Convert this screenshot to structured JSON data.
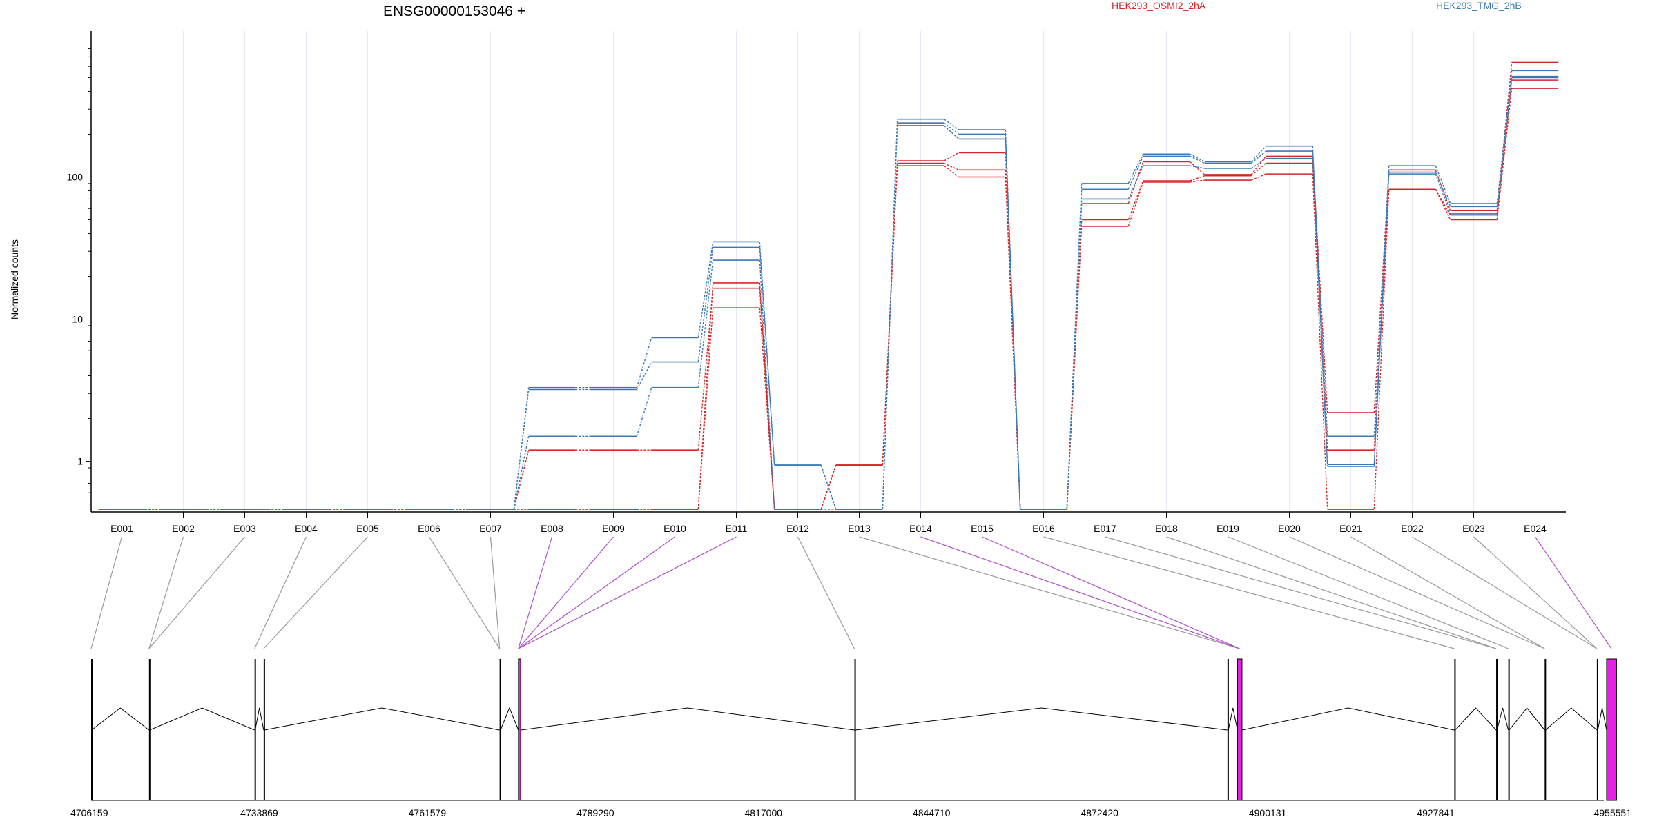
{
  "chart_data": {
    "type": "line",
    "title": "ENSG00000153046 +",
    "ylabel": "Normalized counts",
    "xlabel": "",
    "yscale": "log",
    "ylim": [
      0.45,
      850
    ],
    "yticks": [
      1,
      10,
      100
    ],
    "grid": true,
    "legend_position": "top",
    "categories": [
      "E001",
      "E002",
      "E003",
      "E004",
      "E005",
      "E006",
      "E007",
      "E008",
      "E009",
      "E010",
      "E011",
      "E012",
      "E013",
      "E014",
      "E015",
      "E016",
      "E017",
      "E018",
      "E019",
      "E020",
      "E021",
      "E022",
      "E023",
      "E024"
    ],
    "series": [
      {
        "name": "HEK293_OSMI2_2hA",
        "color": "#d62728",
        "values": [
          0.46,
          0.46,
          0.46,
          0.46,
          0.46,
          0.46,
          0.46,
          0.46,
          0.46,
          0.46,
          12,
          0.46,
          0.94,
          120,
          100,
          0.46,
          45,
          92,
          95,
          105,
          0.46,
          82,
          50,
          420
        ]
      },
      {
        "name": "HEK293_OSMI2_2hA",
        "color": "#d62728",
        "values": [
          0.46,
          0.46,
          0.46,
          0.46,
          0.46,
          0.46,
          0.46,
          1.2,
          1.2,
          1.2,
          16.5,
          0.46,
          0.94,
          125,
          112,
          0.46,
          50,
          94,
          102,
          125,
          1.2,
          82,
          54,
          480
        ]
      },
      {
        "name": "HEK293_OSMI2_2hA",
        "color": "#d62728",
        "values": [
          0.46,
          0.46,
          0.46,
          0.46,
          0.46,
          0.46,
          0.46,
          0.46,
          0.46,
          0.46,
          18,
          0.46,
          0.94,
          130,
          148,
          0.46,
          65,
          128,
          104,
          140,
          2.2,
          112,
          58,
          640
        ]
      },
      {
        "name": "HEK293_TMG_2hB",
        "color": "#3a78b6",
        "values": [
          0.46,
          0.46,
          0.46,
          0.46,
          0.46,
          0.46,
          0.46,
          1.5,
          1.5,
          3.3,
          26,
          0.46,
          0.46,
          230,
          185,
          0.46,
          70,
          120,
          115,
          135,
          0.92,
          105,
          55,
          500
        ]
      },
      {
        "name": "HEK293_TMG_2hB",
        "color": "#3a78b6",
        "values": [
          0.46,
          0.46,
          0.46,
          0.46,
          0.46,
          0.46,
          0.46,
          3.2,
          3.2,
          5.0,
          32,
          0.94,
          0.46,
          240,
          200,
          0.46,
          82,
          140,
          125,
          152,
          1.5,
          108,
          62,
          560
        ]
      },
      {
        "name": "HEK293_TMG_2hB",
        "color": "#3a78b6",
        "values": [
          0.46,
          0.46,
          0.46,
          0.46,
          0.46,
          0.46,
          0.46,
          3.3,
          3.3,
          7.4,
          35,
          0.94,
          0.46,
          255,
          215,
          0.46,
          90,
          145,
          128,
          165,
          0.95,
          120,
          65,
          510
        ]
      }
    ],
    "legend": [
      {
        "label": "HEK293_OSMI2_2hA",
        "color": "#d62728"
      },
      {
        "label": "HEK293_TMG_2hB",
        "color": "#3a78b6"
      }
    ]
  },
  "gene_model": {
    "coord_range": [
      4706159,
      4955551
    ],
    "coordinate_ticks": [
      "4706159",
      "4733869",
      "4761579",
      "4789290",
      "4817000",
      "4844710",
      "4872420",
      "4900131",
      "4927841",
      "4955551"
    ],
    "exons": [
      {
        "start": 4706159,
        "end": 4706239,
        "highlight": false
      },
      {
        "start": 4715700,
        "end": 4715820,
        "highlight": false
      },
      {
        "start": 4733100,
        "end": 4733200,
        "highlight": false
      },
      {
        "start": 4734600,
        "end": 4734700,
        "highlight": false
      },
      {
        "start": 4773500,
        "end": 4773650,
        "highlight": false
      },
      {
        "start": 4776600,
        "end": 4776980,
        "highlight": true
      },
      {
        "start": 4832000,
        "end": 4832150,
        "highlight": false
      },
      {
        "start": 4893500,
        "end": 4893650,
        "highlight": false
      },
      {
        "start": 4895150,
        "end": 4895900,
        "highlight": true
      },
      {
        "start": 4930900,
        "end": 4931050,
        "highlight": false
      },
      {
        "start": 4937800,
        "end": 4937950,
        "highlight": false
      },
      {
        "start": 4939800,
        "end": 4939950,
        "highlight": false
      },
      {
        "start": 4945800,
        "end": 4945950,
        "highlight": false
      },
      {
        "start": 4954400,
        "end": 4954550,
        "highlight": false
      },
      {
        "start": 4956000,
        "end": 4957650,
        "highlight": true
      }
    ],
    "connectors": [
      {
        "bin": 0,
        "coord": 4706159,
        "highlight": false
      },
      {
        "bin": 1,
        "coord": 4715700,
        "highlight": false
      },
      {
        "bin": 2,
        "coord": 4715700,
        "highlight": false
      },
      {
        "bin": 3,
        "coord": 4733100,
        "highlight": false
      },
      {
        "bin": 4,
        "coord": 4734600,
        "highlight": false
      },
      {
        "bin": 5,
        "coord": 4773500,
        "highlight": false
      },
      {
        "bin": 6,
        "coord": 4773500,
        "highlight": false
      },
      {
        "bin": 7,
        "coord": 4776600,
        "highlight": true
      },
      {
        "bin": 8,
        "coord": 4776600,
        "highlight": true
      },
      {
        "bin": 9,
        "coord": 4776600,
        "highlight": true
      },
      {
        "bin": 10,
        "coord": 4776600,
        "highlight": true
      },
      {
        "bin": 11,
        "coord": 4832000,
        "highlight": false
      },
      {
        "bin": 12,
        "coord": 4895500,
        "highlight": false
      },
      {
        "bin": 13,
        "coord": 4895500,
        "highlight": true
      },
      {
        "bin": 14,
        "coord": 4895500,
        "highlight": true
      },
      {
        "bin": 15,
        "coord": 4930900,
        "highlight": false
      },
      {
        "bin": 16,
        "coord": 4937800,
        "highlight": false
      },
      {
        "bin": 17,
        "coord": 4937800,
        "highlight": false
      },
      {
        "bin": 18,
        "coord": 4939800,
        "highlight": false
      },
      {
        "bin": 19,
        "coord": 4945800,
        "highlight": false
      },
      {
        "bin": 20,
        "coord": 4945800,
        "highlight": false
      },
      {
        "bin": 21,
        "coord": 4954400,
        "highlight": false
      },
      {
        "bin": 22,
        "coord": 4954400,
        "highlight": false
      },
      {
        "bin": 23,
        "coord": 4956800,
        "highlight": true
      }
    ],
    "colors": {
      "exon": "#000000",
      "highlight": "#e81ee8",
      "connector": "#999999",
      "connector_highlight": "#b04fc8",
      "intron": "#000000"
    }
  }
}
